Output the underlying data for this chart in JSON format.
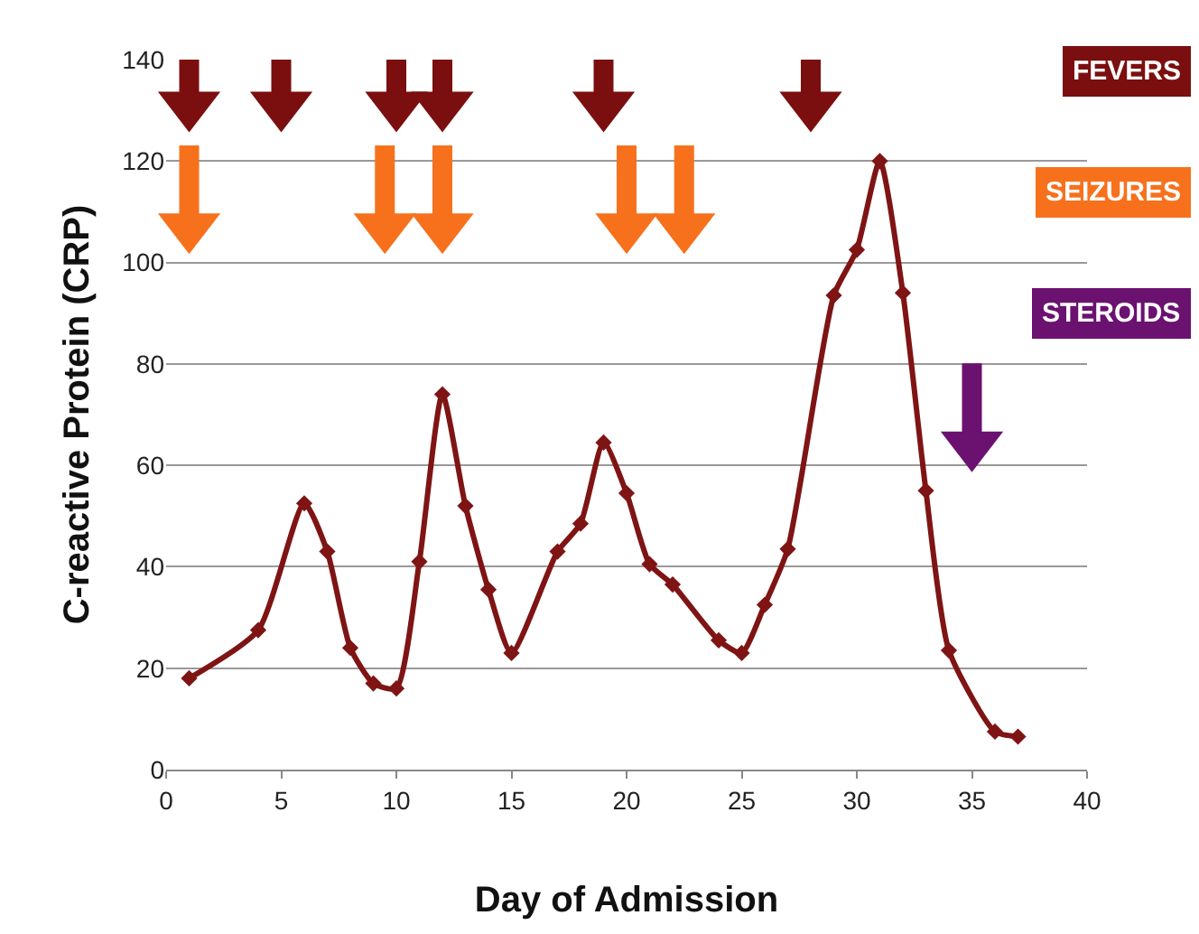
{
  "chart_data": {
    "type": "line",
    "xlabel": "Day of Admission",
    "ylabel": "C-reactive Protein (CRP)",
    "x": [
      1,
      4,
      6,
      7,
      8,
      9,
      10,
      11,
      12,
      13,
      14,
      15,
      17,
      18,
      19,
      20,
      21,
      22,
      24,
      25,
      26,
      27,
      29,
      30,
      31,
      32,
      33,
      34,
      36,
      37
    ],
    "series": [
      {
        "color": "#7f1414",
        "values": [
          18,
          27.5,
          52.5,
          43,
          24,
          17,
          16,
          41,
          74,
          52,
          35.5,
          23,
          43,
          48.5,
          64.5,
          54.5,
          40.5,
          36.5,
          25.5,
          23,
          32.5,
          43.5,
          93.5,
          102.5,
          120,
          94,
          55,
          23.5,
          7.5,
          6.5
        ]
      },
      {
        "name": "FEVERS",
        "type": "scatter",
        "marker": "triangle",
        "color": "#7b0f0f",
        "x": [
          1,
          5,
          10,
          12,
          19,
          28
        ],
        "values": [
          131,
          131,
          131,
          131,
          131,
          131
        ]
      },
      {
        "name": "SEIZURES",
        "type": "scatter",
        "marker": "triangle",
        "color": "#f7711d",
        "x": [
          1,
          9.5,
          12,
          20,
          22.5
        ],
        "values": [
          107,
          107,
          107,
          107,
          107
        ]
      },
      {
        "name": "STEROIDS",
        "type": "scatter",
        "marker": "triangle",
        "color": "#6b1170",
        "x": [
          35
        ],
        "values": [
          64
        ]
      }
    ],
    "xlim": [
      0,
      40
    ],
    "xticks": [
      0,
      5,
      10,
      15,
      20,
      25,
      30,
      35,
      40
    ],
    "ylim": [
      0,
      140
    ],
    "yticks": [
      0,
      20,
      40,
      60,
      80,
      100,
      120,
      140
    ],
    "grid": "y",
    "marker": "diamond"
  }
}
